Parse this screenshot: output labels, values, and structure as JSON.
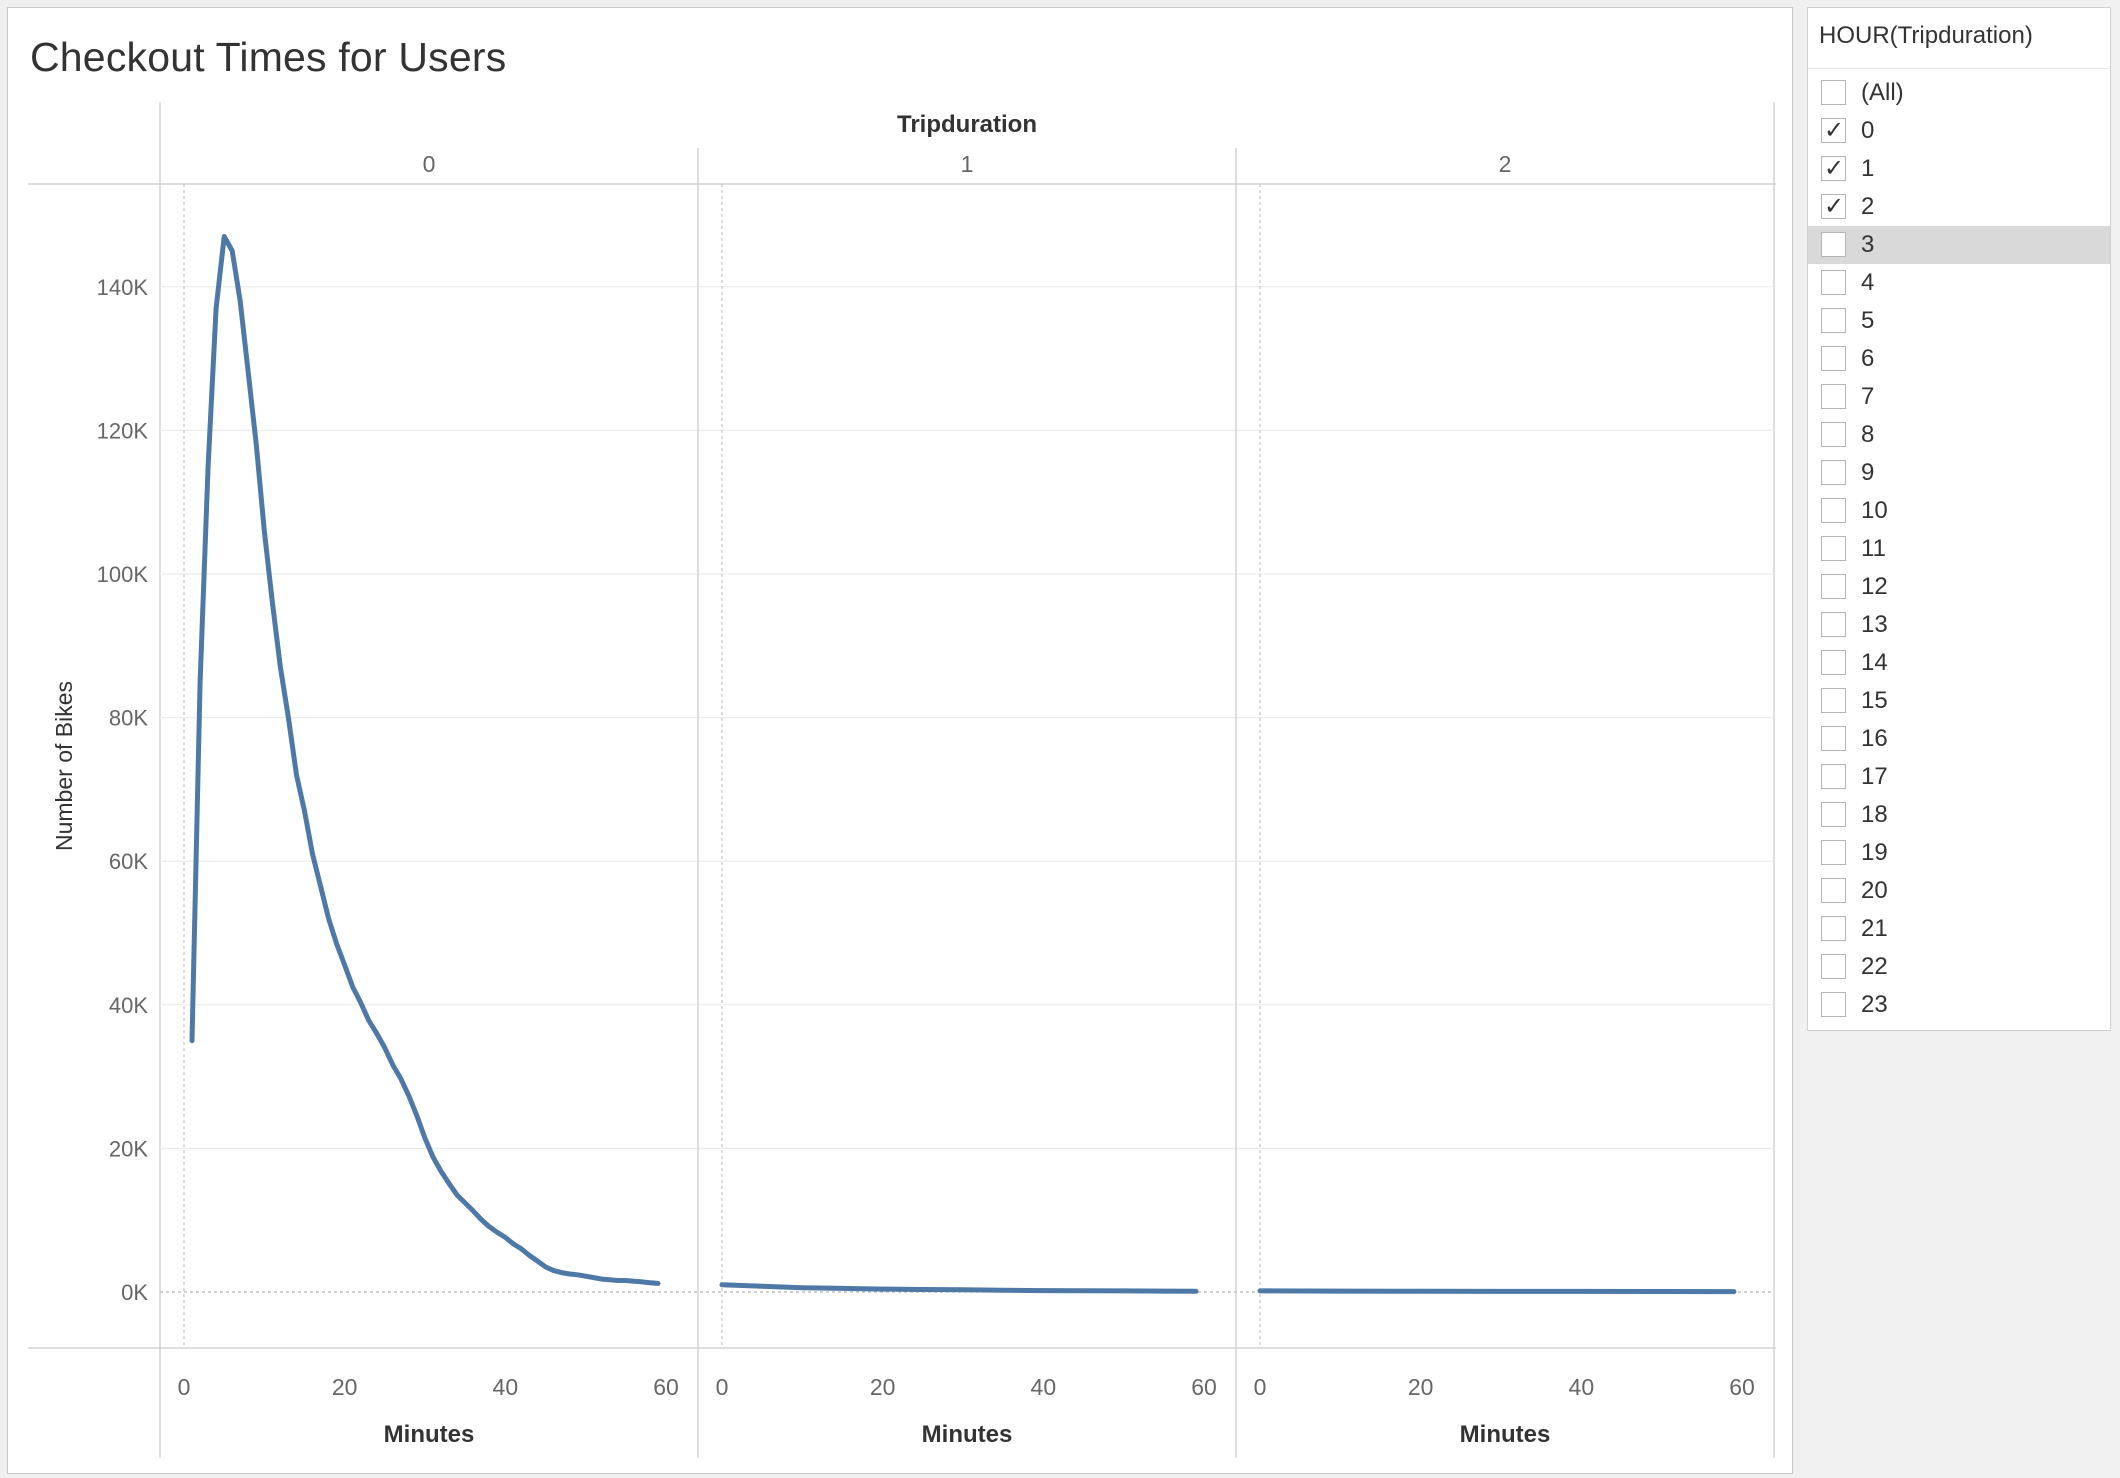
{
  "title": "Checkout Times for Users",
  "chart_data": {
    "type": "line",
    "column_header": "Tripduration",
    "panels": [
      "0",
      "1",
      "2"
    ],
    "xlabel": "Minutes",
    "ylabel": "Number of Bikes",
    "xlim": [
      0,
      60
    ],
    "ylim": [
      0,
      150000
    ],
    "xticks": [
      0,
      20,
      40,
      60
    ],
    "yticks": [
      0,
      20000,
      40000,
      60000,
      80000,
      100000,
      120000,
      140000
    ],
    "ytick_labels": [
      "0K",
      "20K",
      "40K",
      "60K",
      "80K",
      "100K",
      "120K",
      "140K"
    ],
    "line_color": "#4e79a7",
    "grid": true,
    "series": [
      {
        "panel": "0",
        "x": [
          1,
          2,
          3,
          4,
          5,
          6,
          7,
          8,
          9,
          10,
          11,
          12,
          13,
          14,
          15,
          16,
          17,
          18,
          19,
          20,
          21,
          22,
          23,
          24,
          25,
          26,
          27,
          28,
          29,
          30,
          31,
          32,
          33,
          34,
          35,
          36,
          37,
          38,
          39,
          40,
          41,
          42,
          43,
          44,
          45,
          46,
          47,
          48,
          49,
          50,
          51,
          52,
          53,
          54,
          55,
          56,
          57,
          58,
          59
        ],
        "y": [
          35000,
          85000,
          115000,
          137000,
          147000,
          145000,
          138000,
          128000,
          118000,
          106000,
          96000,
          87000,
          80000,
          72000,
          67000,
          61000,
          56500,
          52000,
          48500,
          45500,
          42500,
          40300,
          37800,
          36000,
          34000,
          31600,
          29700,
          27300,
          24500,
          21400,
          18800,
          16800,
          15100,
          13500,
          12400,
          11300,
          10100,
          9100,
          8300,
          7600,
          6700,
          6000,
          5100,
          4300,
          3500,
          3000,
          2700,
          2500,
          2400,
          2200,
          2000,
          1800,
          1700,
          1600,
          1600,
          1500,
          1400,
          1300,
          1200
        ]
      },
      {
        "panel": "1",
        "x": [
          0,
          5,
          10,
          15,
          20,
          25,
          30,
          35,
          40,
          45,
          50,
          55,
          59
        ],
        "y": [
          1000,
          800,
          600,
          500,
          400,
          350,
          300,
          250,
          200,
          180,
          150,
          120,
          100
        ]
      },
      {
        "panel": "2",
        "x": [
          0,
          10,
          20,
          30,
          40,
          50,
          59
        ],
        "y": [
          150,
          120,
          100,
          90,
          80,
          70,
          60
        ]
      }
    ]
  },
  "filter": {
    "title": "HOUR(Tripduration)",
    "items": [
      {
        "label": "(All)",
        "checked": false
      },
      {
        "label": "0",
        "checked": true
      },
      {
        "label": "1",
        "checked": true
      },
      {
        "label": "2",
        "checked": true
      },
      {
        "label": "3",
        "checked": false,
        "highlighted": true
      },
      {
        "label": "4",
        "checked": false
      },
      {
        "label": "5",
        "checked": false
      },
      {
        "label": "6",
        "checked": false
      },
      {
        "label": "7",
        "checked": false
      },
      {
        "label": "8",
        "checked": false
      },
      {
        "label": "9",
        "checked": false
      },
      {
        "label": "10",
        "checked": false
      },
      {
        "label": "11",
        "checked": false
      },
      {
        "label": "12",
        "checked": false
      },
      {
        "label": "13",
        "checked": false
      },
      {
        "label": "14",
        "checked": false
      },
      {
        "label": "15",
        "checked": false
      },
      {
        "label": "16",
        "checked": false
      },
      {
        "label": "17",
        "checked": false
      },
      {
        "label": "18",
        "checked": false
      },
      {
        "label": "19",
        "checked": false
      },
      {
        "label": "20",
        "checked": false
      },
      {
        "label": "21",
        "checked": false
      },
      {
        "label": "22",
        "checked": false
      },
      {
        "label": "23",
        "checked": false
      }
    ]
  }
}
